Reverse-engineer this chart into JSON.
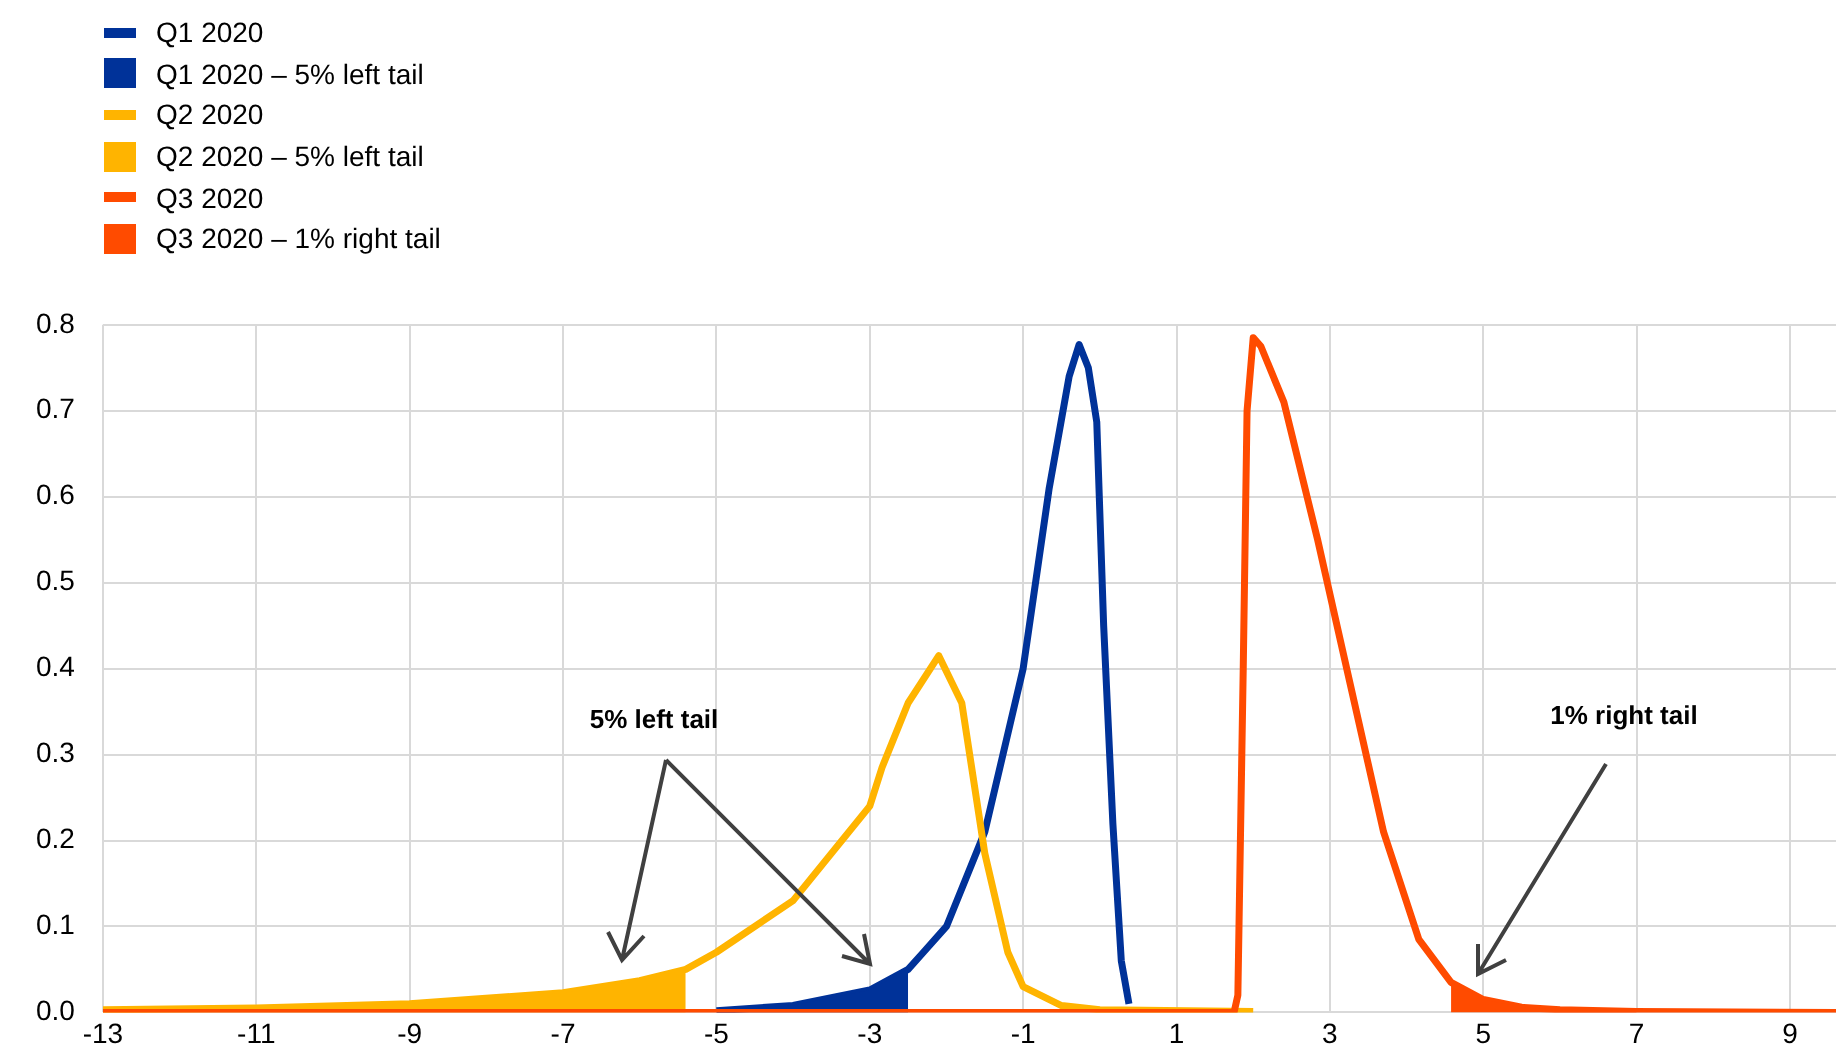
{
  "chart_data": {
    "type": "line",
    "xlim": [
      -13,
      9.6
    ],
    "xticks": [
      -13,
      -11,
      -9,
      -7,
      -5,
      -3,
      -1,
      1,
      3,
      5,
      7,
      9
    ],
    "ylim": [
      0,
      0.8
    ],
    "yticks": [
      {
        "value": 0,
        "label": "0.0"
      },
      0.1,
      0.2,
      0.3,
      0.4,
      0.5,
      0.6,
      0.7,
      0.8
    ],
    "grid": true,
    "legend": "top left",
    "marker": "none",
    "series": [
      {
        "name": "Q1 2020",
        "color": "#003299",
        "x": [
          -5,
          -4,
          -3,
          -2.5,
          -2.3,
          -2,
          -1.5,
          -1,
          -0.66,
          -0.4,
          -0.27,
          -0.15,
          -0.04,
          0.05,
          0.17,
          0.28,
          0.38
        ],
        "values": [
          0.002,
          0.008,
          0.026,
          0.05,
          0.07,
          0.1,
          0.21,
          0.4,
          0.61,
          0.74,
          0.777,
          0.75,
          0.687,
          0.45,
          0.22,
          0.06,
          0.01
        ]
      },
      {
        "name": "Q1 2020 – 5% left tail",
        "type": "area",
        "color": "#003299",
        "x": [
          -5,
          -4,
          -3,
          -2.5
        ],
        "values": [
          0.002,
          0.008,
          0.026,
          0.05
        ]
      },
      {
        "name": "Q2 2020",
        "color": "#ffb400",
        "x": [
          -13,
          -11,
          -9,
          -7,
          -6,
          -5.4,
          -5,
          -4,
          -3,
          -2.84,
          -2.5,
          -2.1,
          -1.8,
          -1.5,
          -1.2,
          -1,
          -0.5,
          0,
          2
        ],
        "values": [
          0.003,
          0.005,
          0.01,
          0.023,
          0.037,
          0.05,
          0.07,
          0.13,
          0.24,
          0.285,
          0.36,
          0.415,
          0.36,
          0.185,
          0.07,
          0.03,
          0.008,
          0.003,
          0.001
        ]
      },
      {
        "name": "Q2 2020 – 5% left tail",
        "type": "area",
        "color": "#ffb400",
        "x": [
          -13,
          -11,
          -9,
          -7,
          -6,
          -5.4
        ],
        "values": [
          0.003,
          0.005,
          0.01,
          0.023,
          0.037,
          0.05
        ]
      },
      {
        "name": "Q3 2020",
        "color": "#ff4b00",
        "x": [
          -13,
          1.75,
          1.8,
          1.87,
          1.92,
          2,
          2.1,
          2.4,
          2.84,
          3.27,
          3.7,
          4.16,
          4.58,
          5,
          5.5,
          6,
          7,
          9.6
        ],
        "values": [
          0,
          0,
          0.02,
          0.4,
          0.7,
          0.785,
          0.775,
          0.71,
          0.55,
          0.38,
          0.21,
          0.085,
          0.035,
          0.015,
          0.006,
          0.003,
          0.001,
          0
        ]
      },
      {
        "name": "Q3 2020 – 1% right tail",
        "type": "area",
        "color": "#ff4b00",
        "x": [
          4.58,
          5,
          5.5,
          6,
          7
        ],
        "values": [
          0.035,
          0.015,
          0.006,
          0.003,
          0.001
        ]
      }
    ],
    "annotations": [
      "5% left tail",
      "1% right tail"
    ]
  }
}
